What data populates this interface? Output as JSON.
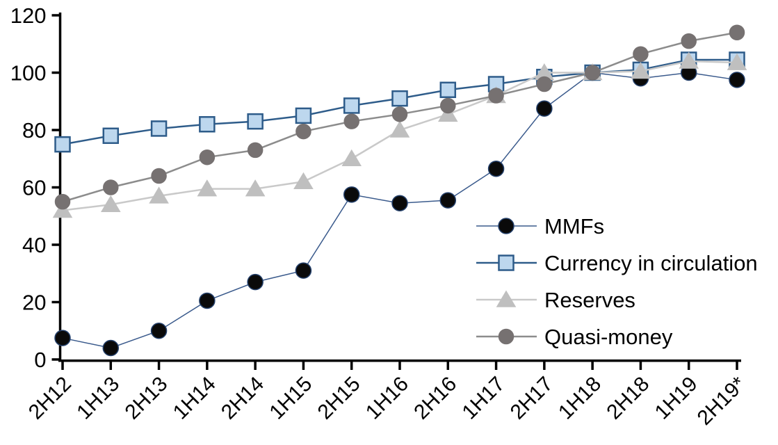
{
  "chart_data": {
    "type": "line",
    "categories": [
      "2H12",
      "1H13",
      "2H13",
      "1H14",
      "2H14",
      "1H15",
      "2H15",
      "1H16",
      "2H16",
      "1H17",
      "2H17",
      "1H18",
      "2H18",
      "1H19",
      "2H19*"
    ],
    "series": [
      {
        "name": "MMFs",
        "marker": "circle",
        "marker_color": "#0a0a0a",
        "marker_edge": "#24406B",
        "line_color": "#3A5A8C",
        "line_width": 1.5,
        "values": [
          7.5,
          4,
          10,
          20.5,
          27,
          31,
          57.5,
          54.5,
          55.5,
          66.5,
          87.5,
          100,
          98,
          100,
          97.5
        ]
      },
      {
        "name": "Currency in circulation",
        "marker": "square",
        "marker_color": "#BDD7EE",
        "marker_edge": "#2E5C8A",
        "line_color": "#2E5C8A",
        "line_width": 2.5,
        "values": [
          75,
          78,
          80.5,
          82,
          83,
          85,
          88.5,
          91,
          94,
          96,
          98.5,
          100,
          101,
          104.5,
          104.5
        ]
      },
      {
        "name": "Reserves",
        "marker": "triangle",
        "marker_color": "#BFBFBF",
        "marker_edge": "#BFBFBF",
        "line_color": "#C9C9C9",
        "line_width": 2.5,
        "values": [
          52,
          54,
          57,
          59.5,
          59.5,
          62,
          70,
          80,
          85.5,
          92,
          100,
          100,
          100.5,
          104,
          103.5
        ]
      },
      {
        "name": "Quasi-money",
        "marker": "circle",
        "marker_color": "#767171",
        "marker_edge": "#767171",
        "line_color": "#8C8C8C",
        "line_width": 2.5,
        "values": [
          55,
          60,
          64,
          70.5,
          73,
          79.5,
          83,
          85.5,
          88.5,
          92,
          96,
          100,
          106.5,
          111,
          114
        ]
      }
    ],
    "ylim": [
      0,
      120
    ],
    "yticks": [
      0,
      20,
      40,
      60,
      80,
      100,
      120
    ],
    "grid": false,
    "legend_position": "inside-right",
    "axis_color": "#000000",
    "text_color": "#000000"
  }
}
